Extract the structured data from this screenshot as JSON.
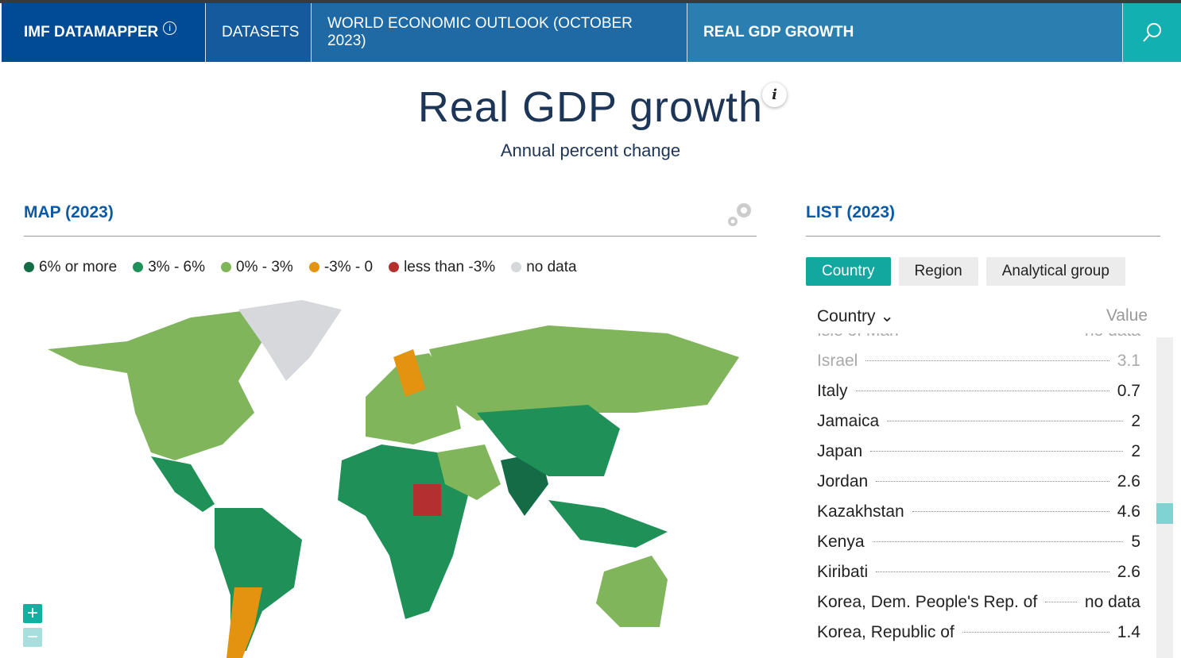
{
  "nav": {
    "brand": "IMF DATAMAPPER",
    "brand_info": "i",
    "datasets": "DATASETS",
    "dataset": "WORLD ECONOMIC OUTLOOK (OCTOBER 2023)",
    "indicator": "REAL GDP GROWTH",
    "search_icon": "search-icon"
  },
  "title": "Real GDP growth",
  "title_info": "i",
  "subtitle": "Annual percent change",
  "map": {
    "heading": "MAP (2023)",
    "settings_icon": "gear-icon",
    "zoom_in": "+",
    "zoom_out": "−",
    "legend": [
      {
        "label": "6% or more",
        "color": "#136c46"
      },
      {
        "label": "3% - 6%",
        "color": "#1f9158"
      },
      {
        "label": "0% - 3%",
        "color": "#80b55c"
      },
      {
        "label": "-3% - 0",
        "color": "#e3930f"
      },
      {
        "label": "less than -3%",
        "color": "#b3302e"
      },
      {
        "label": "no data",
        "color": "#d6d8dc"
      }
    ]
  },
  "list": {
    "heading": "LIST (2023)",
    "tabs": [
      "Country",
      "Region",
      "Analytical group"
    ],
    "col_country": "Country",
    "col_value": "Value",
    "rows": [
      {
        "name": "Isle of Man",
        "value": "no data"
      },
      {
        "name": "Israel",
        "value": "3.1"
      },
      {
        "name": "Italy",
        "value": "0.7"
      },
      {
        "name": "Jamaica",
        "value": "2"
      },
      {
        "name": "Japan",
        "value": "2"
      },
      {
        "name": "Jordan",
        "value": "2.6"
      },
      {
        "name": "Kazakhstan",
        "value": "4.6"
      },
      {
        "name": "Kenya",
        "value": "5"
      },
      {
        "name": "Kiribati",
        "value": "2.6"
      },
      {
        "name": "Korea, Dem. People's Rep. of",
        "value": "no data"
      },
      {
        "name": "Korea, Republic of",
        "value": "1.4"
      }
    ]
  }
}
